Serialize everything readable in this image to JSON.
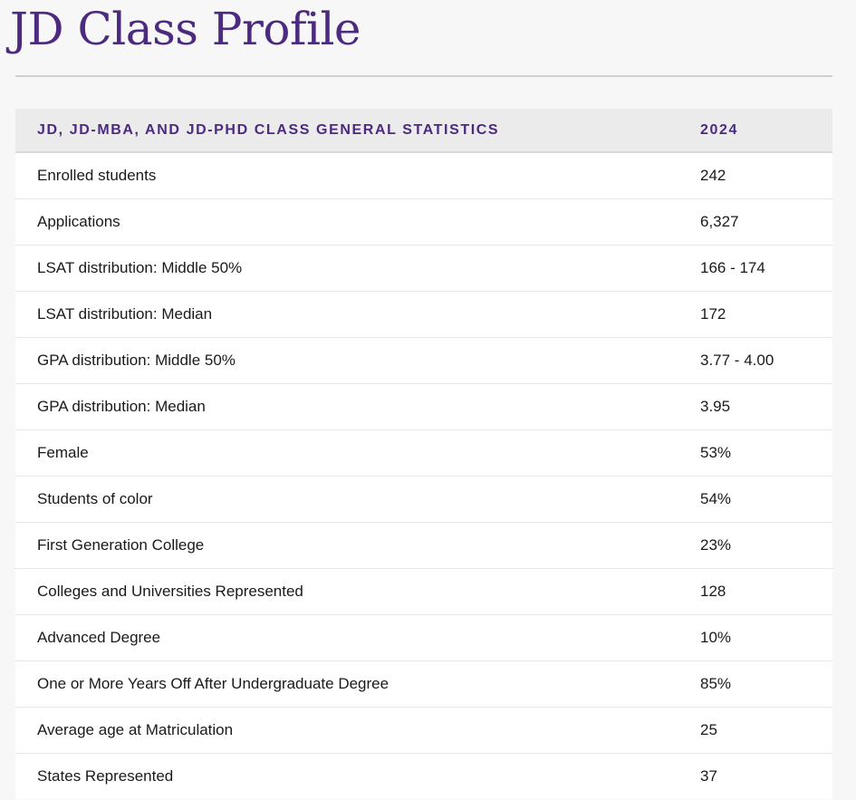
{
  "page": {
    "title": "JD Class Profile"
  },
  "table": {
    "headers": [
      "JD, JD-MBA, and JD-PhD Class General Statistics",
      "2024"
    ],
    "rows": [
      {
        "label": "Enrolled students",
        "value": "242"
      },
      {
        "label": "Applications",
        "value": "6,327"
      },
      {
        "label": "LSAT distribution: Middle 50%",
        "value": "166 - 174"
      },
      {
        "label": "LSAT distribution: Median",
        "value": "172"
      },
      {
        "label": "GPA distribution: Middle 50%",
        "value": "3.77 - 4.00"
      },
      {
        "label": "GPA distribution: Median",
        "value": "3.95"
      },
      {
        "label": "Female",
        "value": "53%"
      },
      {
        "label": "Students of color",
        "value": "54%"
      },
      {
        "label": "First Generation College",
        "value": "23%"
      },
      {
        "label": "Colleges and Universities Represented",
        "value": "128"
      },
      {
        "label": "Advanced Degree",
        "value": "10%"
      },
      {
        "label": "One or More Years Off After Undergraduate Degree",
        "value": "85%"
      },
      {
        "label": "Average age at Matriculation",
        "value": "25"
      },
      {
        "label": "States Represented",
        "value": "37"
      }
    ]
  },
  "colors": {
    "accent": "#4b2a80",
    "header_bg": "#ebebeb",
    "page_bg": "#f7f7f7"
  }
}
